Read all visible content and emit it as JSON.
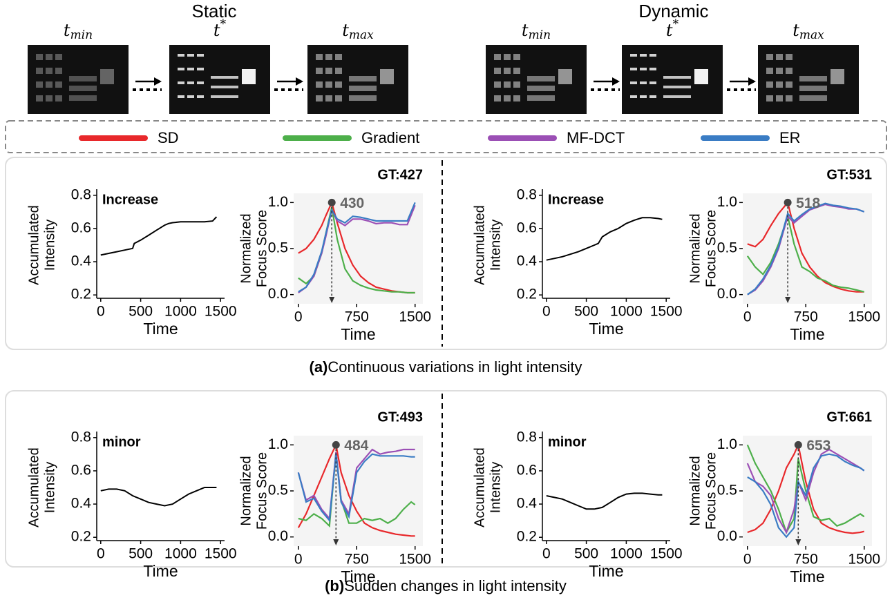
{
  "header": {
    "groups": [
      {
        "title": "Static",
        "frames": [
          {
            "base": "t",
            "sub": "min"
          },
          {
            "base": "t",
            "sup": "*"
          },
          {
            "base": "t",
            "sub": "max"
          }
        ]
      },
      {
        "title": "Dynamic",
        "frames": [
          {
            "base": "t",
            "sub": "min"
          },
          {
            "base": "t",
            "sup": "*"
          },
          {
            "base": "t",
            "sub": "max"
          }
        ]
      }
    ]
  },
  "legend": [
    {
      "name": "SD",
      "color": "#e8282b"
    },
    {
      "name": "Gradient",
      "color": "#4daf4a"
    },
    {
      "name": "MF-DCT",
      "color": "#9b4fb5"
    },
    {
      "name": "ER",
      "color": "#3a7cc4"
    }
  ],
  "chart_data": [
    {
      "type": "line",
      "annotation": "Increase",
      "xlabel": "Time",
      "ylabel": [
        "Accumulated",
        "Intensity"
      ],
      "color": "#000000",
      "x": [
        0,
        100,
        200,
        300,
        400,
        420,
        500,
        600,
        700,
        800,
        850,
        900,
        1000,
        1100,
        1200,
        1300,
        1400,
        1450
      ],
      "values": [
        0.44,
        0.45,
        0.46,
        0.47,
        0.48,
        0.51,
        0.53,
        0.56,
        0.59,
        0.62,
        0.63,
        0.635,
        0.64,
        0.64,
        0.64,
        0.64,
        0.645,
        0.67
      ],
      "xlim": [
        -50,
        1550
      ],
      "xticks": [
        0,
        500,
        1000,
        1500
      ],
      "ylim": [
        0.18,
        0.82
      ],
      "yticks": [
        0.2,
        0.4,
        0.6,
        0.8
      ]
    },
    {
      "type": "line",
      "annotation": "GT:427",
      "xlabel": "Time",
      "ylabel": [
        "Normalized",
        "Focus Score"
      ],
      "peak": {
        "time": 430,
        "score": 1.0
      },
      "x": [
        0,
        100,
        200,
        300,
        350,
        430,
        500,
        600,
        700,
        800,
        900,
        1000,
        1100,
        1200,
        1300,
        1400,
        1500
      ],
      "series": [
        {
          "values": [
            0.45,
            0.5,
            0.6,
            0.75,
            0.85,
            1.0,
            0.78,
            0.5,
            0.32,
            0.2,
            0.13,
            0.08,
            0.06,
            0.04,
            0.03,
            0.02,
            0.02
          ]
        },
        {
          "values": [
            0.18,
            0.12,
            0.2,
            0.45,
            0.65,
            0.95,
            0.6,
            0.28,
            0.15,
            0.1,
            0.07,
            0.05,
            0.04,
            0.03,
            0.03,
            0.02,
            0.02
          ]
        },
        {
          "values": [
            0.02,
            0.08,
            0.2,
            0.45,
            0.62,
            0.92,
            0.8,
            0.75,
            0.82,
            0.82,
            0.8,
            0.77,
            0.78,
            0.78,
            0.76,
            0.76,
            0.97
          ]
        },
        {
          "values": [
            0.03,
            0.08,
            0.22,
            0.47,
            0.65,
            0.92,
            0.82,
            0.78,
            0.85,
            0.84,
            0.82,
            0.8,
            0.8,
            0.8,
            0.8,
            0.8,
            1.0
          ]
        }
      ],
      "xlim": [
        -60,
        1600
      ],
      "xticks": [
        0,
        750,
        1500
      ],
      "ylim": [
        -0.1,
        1.1
      ],
      "yticks": [
        {
          "value": 0,
          "label": "0.0"
        },
        0.5,
        {
          "value": 1,
          "label": "1.0"
        }
      ]
    },
    {
      "type": "line",
      "annotation": "Increase",
      "xlabel": "Time",
      "ylabel": [
        "Accumulated",
        "Intensity"
      ],
      "color": "#000000",
      "x": [
        0,
        100,
        200,
        300,
        400,
        500,
        600,
        650,
        700,
        800,
        900,
        1000,
        1100,
        1200,
        1300,
        1400,
        1450
      ],
      "values": [
        0.41,
        0.42,
        0.43,
        0.445,
        0.46,
        0.48,
        0.5,
        0.51,
        0.55,
        0.58,
        0.6,
        0.63,
        0.65,
        0.665,
        0.665,
        0.66,
        0.655
      ],
      "xlim": [
        -50,
        1550
      ],
      "xticks": [
        0,
        500,
        1000,
        1500
      ],
      "ylim": [
        0.18,
        0.82
      ],
      "yticks": [
        0.2,
        0.4,
        0.6,
        0.8
      ]
    },
    {
      "type": "line",
      "annotation": "GT:531",
      "xlabel": "Time",
      "ylabel": [
        "Normalized",
        "Focus Score"
      ],
      "peak": {
        "time": 518,
        "score": 1.0
      },
      "x": [
        0,
        100,
        200,
        300,
        400,
        518,
        600,
        700,
        800,
        900,
        1000,
        1100,
        1200,
        1300,
        1400,
        1500
      ],
      "series": [
        {
          "values": [
            0.55,
            0.52,
            0.6,
            0.75,
            0.88,
            1.0,
            0.72,
            0.45,
            0.3,
            0.2,
            0.13,
            0.09,
            0.06,
            0.04,
            0.03,
            0.03
          ]
        },
        {
          "values": [
            0.42,
            0.3,
            0.22,
            0.35,
            0.55,
            0.85,
            0.55,
            0.3,
            0.25,
            0.18,
            0.15,
            0.1,
            0.08,
            0.07,
            0.05,
            0.03
          ]
        },
        {
          "values": [
            0.0,
            0.05,
            0.15,
            0.3,
            0.5,
            0.85,
            0.78,
            0.85,
            0.92,
            0.95,
            0.98,
            0.96,
            0.95,
            0.93,
            0.93,
            0.9
          ]
        },
        {
          "values": [
            0.0,
            0.06,
            0.17,
            0.32,
            0.52,
            0.88,
            0.8,
            0.87,
            0.93,
            0.96,
            0.99,
            0.97,
            0.96,
            0.94,
            0.93,
            0.9
          ]
        }
      ],
      "xlim": [
        -60,
        1600
      ],
      "xticks": [
        0,
        750,
        1500
      ],
      "ylim": [
        -0.1,
        1.1
      ],
      "yticks": [
        {
          "value": 0,
          "label": "0.0"
        },
        0.5,
        {
          "value": 1,
          "label": "1.0"
        }
      ]
    },
    {
      "type": "line",
      "annotation": "minor",
      "xlabel": "Time",
      "ylabel": [
        "Accumulated",
        "Intensity"
      ],
      "color": "#000000",
      "x": [
        0,
        100,
        200,
        300,
        400,
        500,
        600,
        700,
        800,
        900,
        1000,
        1100,
        1200,
        1300,
        1400,
        1450
      ],
      "values": [
        0.48,
        0.49,
        0.49,
        0.48,
        0.45,
        0.43,
        0.41,
        0.4,
        0.39,
        0.4,
        0.43,
        0.46,
        0.48,
        0.5,
        0.5,
        0.5
      ],
      "xlim": [
        -50,
        1550
      ],
      "xticks": [
        0,
        500,
        1000,
        1500
      ],
      "ylim": [
        0.18,
        0.82
      ],
      "yticks": [
        0.2,
        0.4,
        0.6,
        0.8
      ]
    },
    {
      "type": "line",
      "annotation": "GT:493",
      "xlabel": "Time",
      "ylabel": [
        "Normalized",
        "Focus Score"
      ],
      "peak": {
        "time": 484,
        "score": 1.0
      },
      "x": [
        0,
        100,
        200,
        300,
        400,
        484,
        550,
        650,
        750,
        850,
        950,
        1050,
        1150,
        1250,
        1350,
        1450,
        1500
      ],
      "series": [
        {
          "values": [
            0.1,
            0.25,
            0.45,
            0.65,
            0.85,
            1.0,
            0.7,
            0.45,
            0.28,
            0.15,
            0.1,
            0.07,
            0.05,
            0.03,
            0.02,
            0.01,
            0.01
          ]
        },
        {
          "values": [
            0.2,
            0.18,
            0.25,
            0.2,
            0.12,
            0.92,
            0.4,
            0.15,
            0.15,
            0.2,
            0.18,
            0.2,
            0.15,
            0.2,
            0.3,
            0.38,
            0.35
          ]
        },
        {
          "values": [
            0.7,
            0.4,
            0.45,
            0.3,
            0.2,
            0.92,
            0.4,
            0.25,
            0.75,
            0.85,
            0.95,
            0.9,
            0.92,
            0.93,
            0.95,
            0.95,
            0.95
          ]
        },
        {
          "values": [
            0.7,
            0.38,
            0.42,
            0.28,
            0.18,
            0.9,
            0.38,
            0.22,
            0.7,
            0.82,
            0.9,
            0.88,
            0.88,
            0.88,
            0.88,
            0.87,
            0.87
          ]
        }
      ],
      "xlim": [
        -60,
        1600
      ],
      "xticks": [
        0,
        750,
        1500
      ],
      "ylim": [
        -0.1,
        1.1
      ],
      "yticks": [
        {
          "value": 0,
          "label": "0.0"
        },
        0.5,
        {
          "value": 1,
          "label": "1.0"
        }
      ]
    },
    {
      "type": "line",
      "annotation": "minor",
      "xlabel": "Time",
      "ylabel": [
        "Accumulated",
        "Intensity"
      ],
      "color": "#000000",
      "x": [
        0,
        100,
        200,
        300,
        400,
        500,
        600,
        700,
        800,
        900,
        1000,
        1100,
        1200,
        1300,
        1400,
        1450
      ],
      "values": [
        0.45,
        0.44,
        0.43,
        0.41,
        0.39,
        0.37,
        0.37,
        0.38,
        0.41,
        0.44,
        0.46,
        0.465,
        0.465,
        0.46,
        0.455,
        0.455
      ],
      "xlim": [
        -50,
        1550
      ],
      "xticks": [
        0,
        500,
        1000,
        1500
      ],
      "ylim": [
        0.18,
        0.82
      ],
      "yticks": [
        0.2,
        0.4,
        0.6,
        0.8
      ]
    },
    {
      "type": "line",
      "annotation": "GT:661",
      "xlabel": "Time",
      "ylabel": [
        "Normalized",
        "Focus Score"
      ],
      "peak": {
        "time": 653,
        "score": 1.0
      },
      "x": [
        0,
        100,
        200,
        300,
        400,
        500,
        600,
        653,
        750,
        850,
        950,
        1050,
        1150,
        1250,
        1350,
        1450,
        1500
      ],
      "series": [
        {
          "values": [
            0.05,
            0.08,
            0.15,
            0.3,
            0.5,
            0.75,
            0.9,
            1.0,
            0.6,
            0.3,
            0.15,
            0.1,
            0.07,
            0.05,
            0.04,
            0.05,
            0.06
          ]
        },
        {
          "values": [
            1.0,
            0.8,
            0.65,
            0.5,
            0.3,
            0.05,
            0.2,
            0.85,
            0.5,
            0.22,
            0.18,
            0.2,
            0.12,
            0.15,
            0.2,
            0.25,
            0.22
          ]
        },
        {
          "values": [
            0.8,
            0.6,
            0.55,
            0.45,
            0.2,
            0.05,
            0.3,
            0.6,
            0.4,
            0.7,
            0.9,
            0.95,
            0.9,
            0.85,
            0.8,
            0.75,
            0.72
          ]
        },
        {
          "values": [
            0.65,
            0.6,
            0.5,
            0.35,
            0.1,
            0.0,
            0.1,
            0.6,
            0.45,
            0.75,
            0.88,
            0.9,
            0.88,
            0.82,
            0.78,
            0.75,
            0.72
          ]
        }
      ],
      "xlim": [
        -60,
        1600
      ],
      "xticks": [
        0,
        750,
        1500
      ],
      "ylim": [
        -0.1,
        1.1
      ],
      "yticks": [
        {
          "value": 0,
          "label": "0.0"
        },
        0.5,
        {
          "value": 1,
          "label": "1.0"
        }
      ]
    }
  ],
  "captions": [
    {
      "label": "(a)",
      "text": "Continuous variations in light intensity"
    },
    {
      "label": "(b)",
      "text": "Sudden changes in light intensity"
    }
  ]
}
